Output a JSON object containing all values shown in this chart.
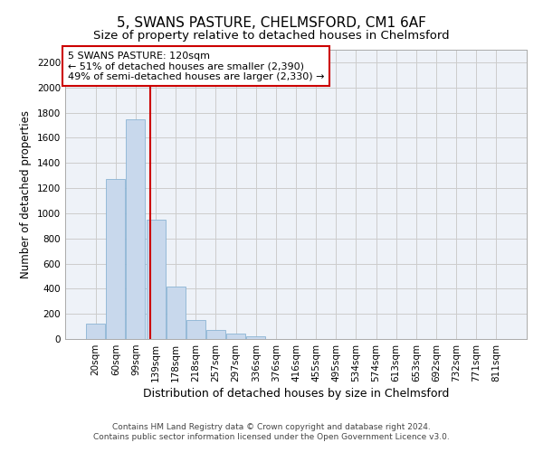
{
  "title": "5, SWANS PASTURE, CHELMSFORD, CM1 6AF",
  "subtitle": "Size of property relative to detached houses in Chelmsford",
  "xlabel": "Distribution of detached houses by size in Chelmsford",
  "ylabel": "Number of detached properties",
  "bar_labels": [
    "20sqm",
    "60sqm",
    "99sqm",
    "139sqm",
    "178sqm",
    "218sqm",
    "257sqm",
    "297sqm",
    "336sqm",
    "376sqm",
    "416sqm",
    "455sqm",
    "495sqm",
    "534sqm",
    "574sqm",
    "613sqm",
    "653sqm",
    "692sqm",
    "732sqm",
    "771sqm",
    "811sqm"
  ],
  "bar_values": [
    120,
    1270,
    1750,
    950,
    415,
    150,
    75,
    40,
    25,
    0,
    0,
    0,
    0,
    0,
    0,
    0,
    0,
    0,
    0,
    0,
    0
  ],
  "bar_color": "#c8d8ec",
  "bar_edgecolor": "#8ab4d4",
  "vline_x": 2.72,
  "vline_color": "#cc0000",
  "annotation_text": "5 SWANS PASTURE: 120sqm\n← 51% of detached houses are smaller (2,390)\n49% of semi-detached houses are larger (2,330) →",
  "annotation_box_color": "#ffffff",
  "annotation_box_edgecolor": "#cc0000",
  "ylim": [
    0,
    2300
  ],
  "yticks": [
    0,
    200,
    400,
    600,
    800,
    1000,
    1200,
    1400,
    1600,
    1800,
    2000,
    2200
  ],
  "grid_color": "#cccccc",
  "background_color": "#eef2f8",
  "footer_line1": "Contains HM Land Registry data © Crown copyright and database right 2024.",
  "footer_line2": "Contains public sector information licensed under the Open Government Licence v3.0.",
  "title_fontsize": 11,
  "subtitle_fontsize": 9.5,
  "xlabel_fontsize": 9,
  "ylabel_fontsize": 8.5,
  "tick_fontsize": 7.5,
  "annotation_fontsize": 8,
  "footer_fontsize": 6.5
}
